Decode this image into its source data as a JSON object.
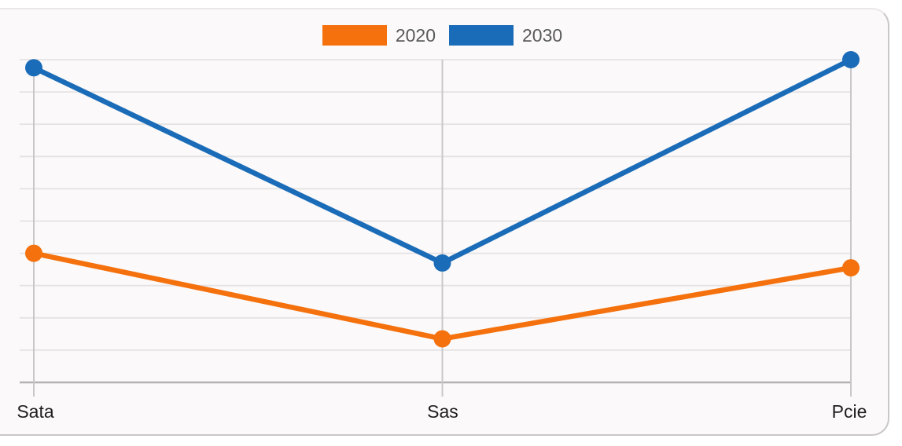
{
  "page": {
    "background_color": "#ffffff"
  },
  "card": {
    "background_color": "#fbf9f9",
    "border_color": "#c9c7c7"
  },
  "legend": {
    "position": "top",
    "text_color": "#58595b"
  },
  "chart_data": {
    "type": "line",
    "categories": [
      "Sata",
      "Sas",
      "Pcie"
    ],
    "series": [
      {
        "name": "2020",
        "color": "#f4710d",
        "values": [
          40,
          13.5,
          35.5
        ]
      },
      {
        "name": "2030",
        "color": "#1b6cb8",
        "values": [
          97.5,
          37,
          100
        ]
      }
    ],
    "title": "",
    "xlabel": "",
    "ylabel": "",
    "ylim": [
      0,
      100
    ],
    "y_tick_step": 10,
    "grid": true,
    "y_tick_labels_visible": false,
    "legend_position": "top",
    "grid_color": "#e4e2e2",
    "category_grid_color": "#c9c7c7",
    "axis_line_color": "#b3b1b1",
    "axis_label_color": "#1f1f1f"
  }
}
